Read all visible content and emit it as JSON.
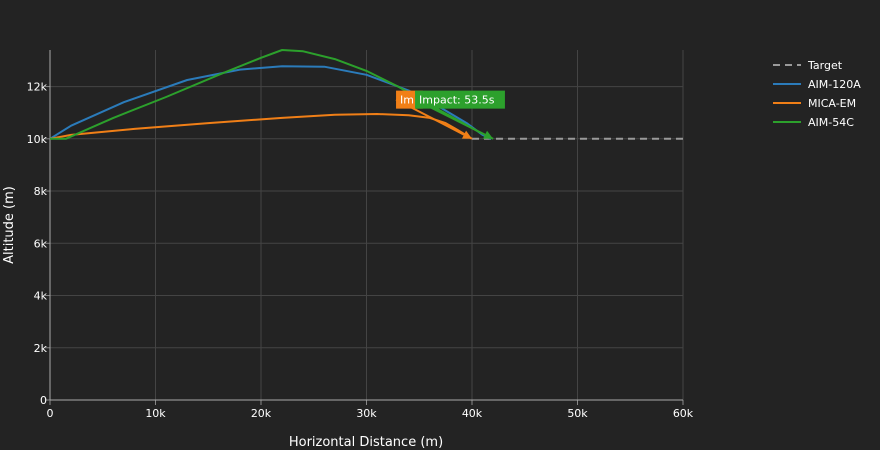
{
  "chart_data": {
    "type": "line",
    "xlabel": "Horizontal Distance (m)",
    "ylabel": "Altitude (m)",
    "xlim": [
      0,
      60000
    ],
    "ylim": [
      0,
      13400
    ],
    "x_ticks": [
      0,
      10000,
      20000,
      30000,
      40000,
      50000,
      60000
    ],
    "x_tick_labels": [
      "0",
      "10k",
      "20k",
      "30k",
      "40k",
      "50k",
      "60k"
    ],
    "y_ticks": [
      0,
      2000,
      4000,
      6000,
      8000,
      10000,
      12000
    ],
    "y_tick_labels": [
      "0",
      "2k",
      "4k",
      "6k",
      "8k",
      "10k",
      "12k"
    ],
    "grid": true,
    "legend_position": "top-right",
    "series": [
      {
        "name": "Target",
        "color": "#9a9a9a",
        "dash": true,
        "x": [
          40000,
          60000
        ],
        "y": [
          10000,
          10000
        ]
      },
      {
        "name": "AIM-120A",
        "color": "#2b7bba",
        "dash": false,
        "x": [
          0,
          2000,
          7000,
          13000,
          18000,
          22000,
          26000,
          30000,
          34000,
          37000,
          39500,
          41000,
          41800
        ],
        "y": [
          10000,
          10500,
          11400,
          12250,
          12650,
          12780,
          12760,
          12450,
          11850,
          11200,
          10600,
          10150,
          10000
        ]
      },
      {
        "name": "MICA-EM",
        "color": "#f07f17",
        "dash": false,
        "x": [
          0,
          2000,
          8000,
          15000,
          22000,
          27000,
          31000,
          34000,
          36000,
          37500,
          38600,
          39400,
          40000
        ],
        "y": [
          10000,
          10150,
          10380,
          10600,
          10800,
          10920,
          10950,
          10900,
          10800,
          10600,
          10350,
          10150,
          10000
        ]
      },
      {
        "name": "AIM-54C",
        "color": "#2ca02c",
        "dash": false,
        "x": [
          0,
          1500,
          6000,
          11000,
          16000,
          20000,
          22000,
          24000,
          27000,
          30000,
          33000,
          36000,
          38500,
          40500,
          42000
        ],
        "y": [
          10000,
          10000,
          10800,
          11600,
          12450,
          13100,
          13400,
          13350,
          13050,
          12600,
          12000,
          11300,
          10750,
          10300,
          10000
        ]
      }
    ],
    "annotations": [
      {
        "text": "Imp",
        "color": "#f07f17",
        "x": 32800,
        "y": 11500,
        "ax": 40000,
        "ay": 10000
      },
      {
        "text": "Impact: 53.5s",
        "color": "#2ca02c",
        "x": 34600,
        "y": 11500,
        "ax": 42000,
        "ay": 10000
      }
    ]
  }
}
